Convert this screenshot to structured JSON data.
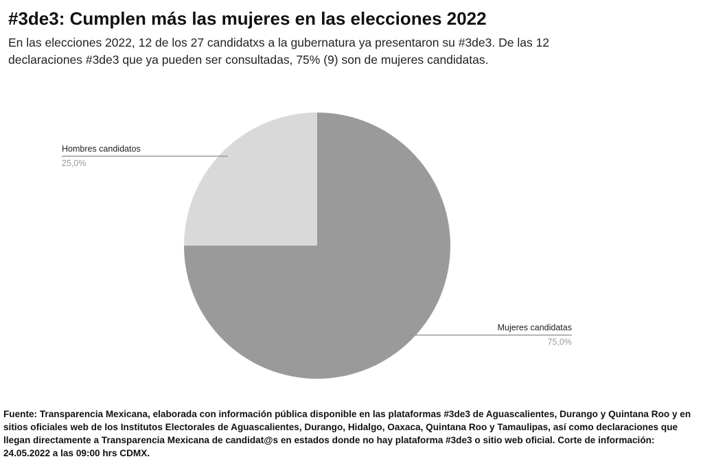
{
  "chart_data": {
    "type": "pie",
    "title": "#3de3: Cumplen más las mujeres en las elecciones 2022",
    "subtitle": "En las elecciones 2022, 12 de los 27 candidatxs a la gubernatura ya presentaron su #3de3. De las 12 declaraciones #3de3 que ya pueden ser consultadas, 75% (9) son de mujeres candidatas.",
    "categories": [
      "Mujeres candidatas",
      "Hombres candidatos"
    ],
    "values": [
      75,
      25
    ],
    "value_labels": [
      "75,0%",
      "25,0%"
    ],
    "colors": [
      "#9a9a9a",
      "#d9d9d9"
    ],
    "source": "Fuente: Transparencia Mexicana, elaborada con información pública disponible en las plataformas #3de3 de Aguascalientes, Durango y Quintana Roo y en sitios oficiales web de los Institutos Electorales de Aguascalientes, Durango, Hidalgo, Oaxaca, Quintana Roo y Tamaulipas, así como declaraciones que llegan directamente a Transparencia Mexicana de candidat@s en estados donde no hay plataforma #3de3 o sitio web oficial. Corte de información: 24.05.2022 a las 09:00 hrs CDMX."
  }
}
